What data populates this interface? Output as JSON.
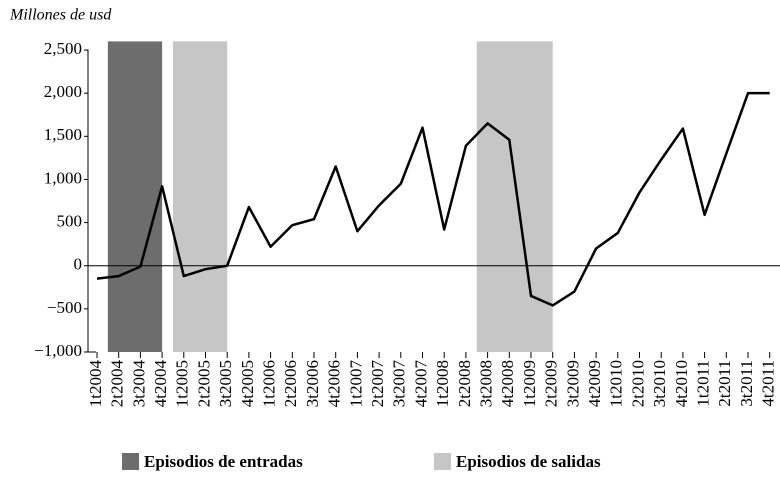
{
  "chart_data": {
    "type": "line",
    "ylabel": "Millones de usd",
    "categories": [
      "1t2004",
      "2t2004",
      "3t2004",
      "4t2004",
      "1t2005",
      "2t2005",
      "3t2005",
      "4t2005",
      "1t2006",
      "2t2006",
      "3t2006",
      "4t2006",
      "1t2007",
      "2t2007",
      "3t2007",
      "4t2007",
      "1t2008",
      "2t2008",
      "3t2008",
      "4t2008",
      "1t2009",
      "2t2009",
      "3t2009",
      "4t2009",
      "1t2010",
      "2t2010",
      "3t2010",
      "4t2010",
      "1t2011",
      "2t2011",
      "3t2011",
      "4t2011"
    ],
    "series": [
      {
        "color": "#000000",
        "values": [
          -150,
          -120,
          -10,
          920,
          -120,
          -40,
          0,
          680,
          220,
          470,
          540,
          1150,
          400,
          700,
          950,
          1600,
          420,
          1390,
          1650,
          1460,
          -350,
          -460,
          -300,
          200,
          380,
          850,
          1230,
          1590,
          590,
          1300,
          2000,
          2000
        ]
      }
    ],
    "bands": [
      {
        "name": "Episodios de entradas",
        "color": "#6d6d6d",
        "ranges": [
          [
            "2t2004",
            "4t2004"
          ]
        ]
      },
      {
        "name": "Episodios de salidas",
        "color": "#c6c6c6",
        "ranges": [
          [
            "1t2005",
            "3t2005"
          ],
          [
            "3t2008",
            "2t2009"
          ]
        ]
      }
    ],
    "ylim": [
      -1000,
      2600
    ],
    "yticks": [
      {
        "value": -1000,
        "label": "−1,000"
      },
      {
        "value": -500,
        "label": "−500"
      },
      0,
      500,
      {
        "value": 1000,
        "label": "1,000"
      },
      {
        "value": 1500,
        "label": "1,500"
      },
      {
        "value": 2000,
        "label": "2,000"
      },
      {
        "value": 2500,
        "label": "2,500"
      }
    ],
    "zero_line": true
  }
}
